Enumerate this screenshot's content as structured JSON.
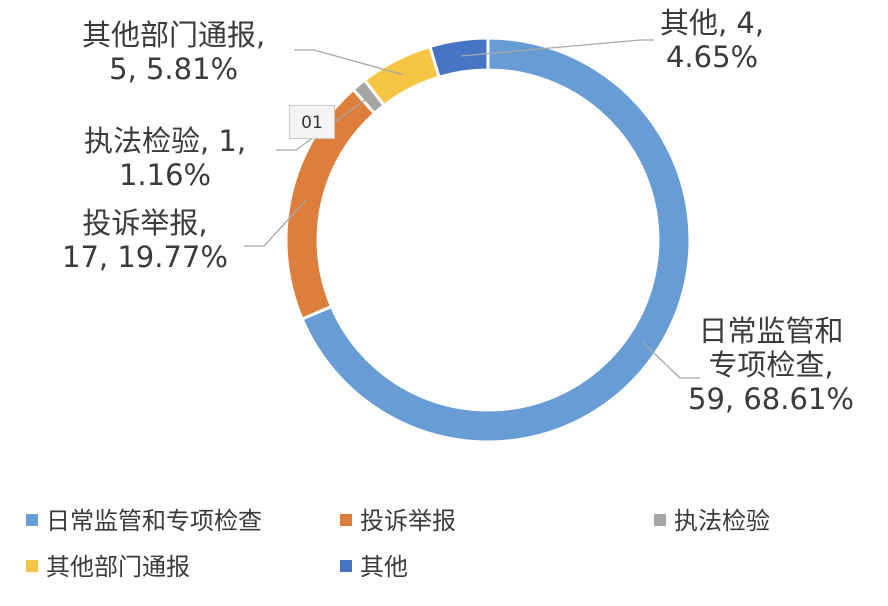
{
  "chart_data": {
    "type": "pie",
    "donut": true,
    "title": "",
    "categories": [
      "日常监管和专项检查",
      "投诉举报",
      "执法检验",
      "其他部门通报",
      "其他"
    ],
    "values": [
      59,
      17,
      1,
      5,
      4
    ],
    "percentages": [
      "68.61%",
      "19.77%",
      "1.16%",
      "5.81%",
      "4.65%"
    ],
    "colors": [
      "#679dd4",
      "#de7e3d",
      "#a5a5a5",
      "#f7c544",
      "#4675c6"
    ],
    "slice_order": [
      "其他",
      "日常监管和专项检查",
      "投诉举报",
      "执法检验",
      "其他部门通报"
    ],
    "data_labels": {
      "日常监管和专项检查": [
        "日常监管和",
        "专项检查,",
        "59, 68.61%"
      ],
      "投诉举报": [
        "投诉举报,",
        "17, 19.77%"
      ],
      "执法检验": [
        "执法检验, 1,",
        "1.16%"
      ],
      "其他部门通报": [
        "其他部门通报,",
        "5, 5.81%"
      ],
      "其他": [
        "其他, 4,",
        "4.65%"
      ]
    },
    "legend": {
      "placement": "bottom",
      "entries": [
        "日常监管和专项检查",
        "投诉举报",
        "执法检验",
        "其他部门通报",
        "其他"
      ]
    }
  },
  "tag_badge": "01"
}
